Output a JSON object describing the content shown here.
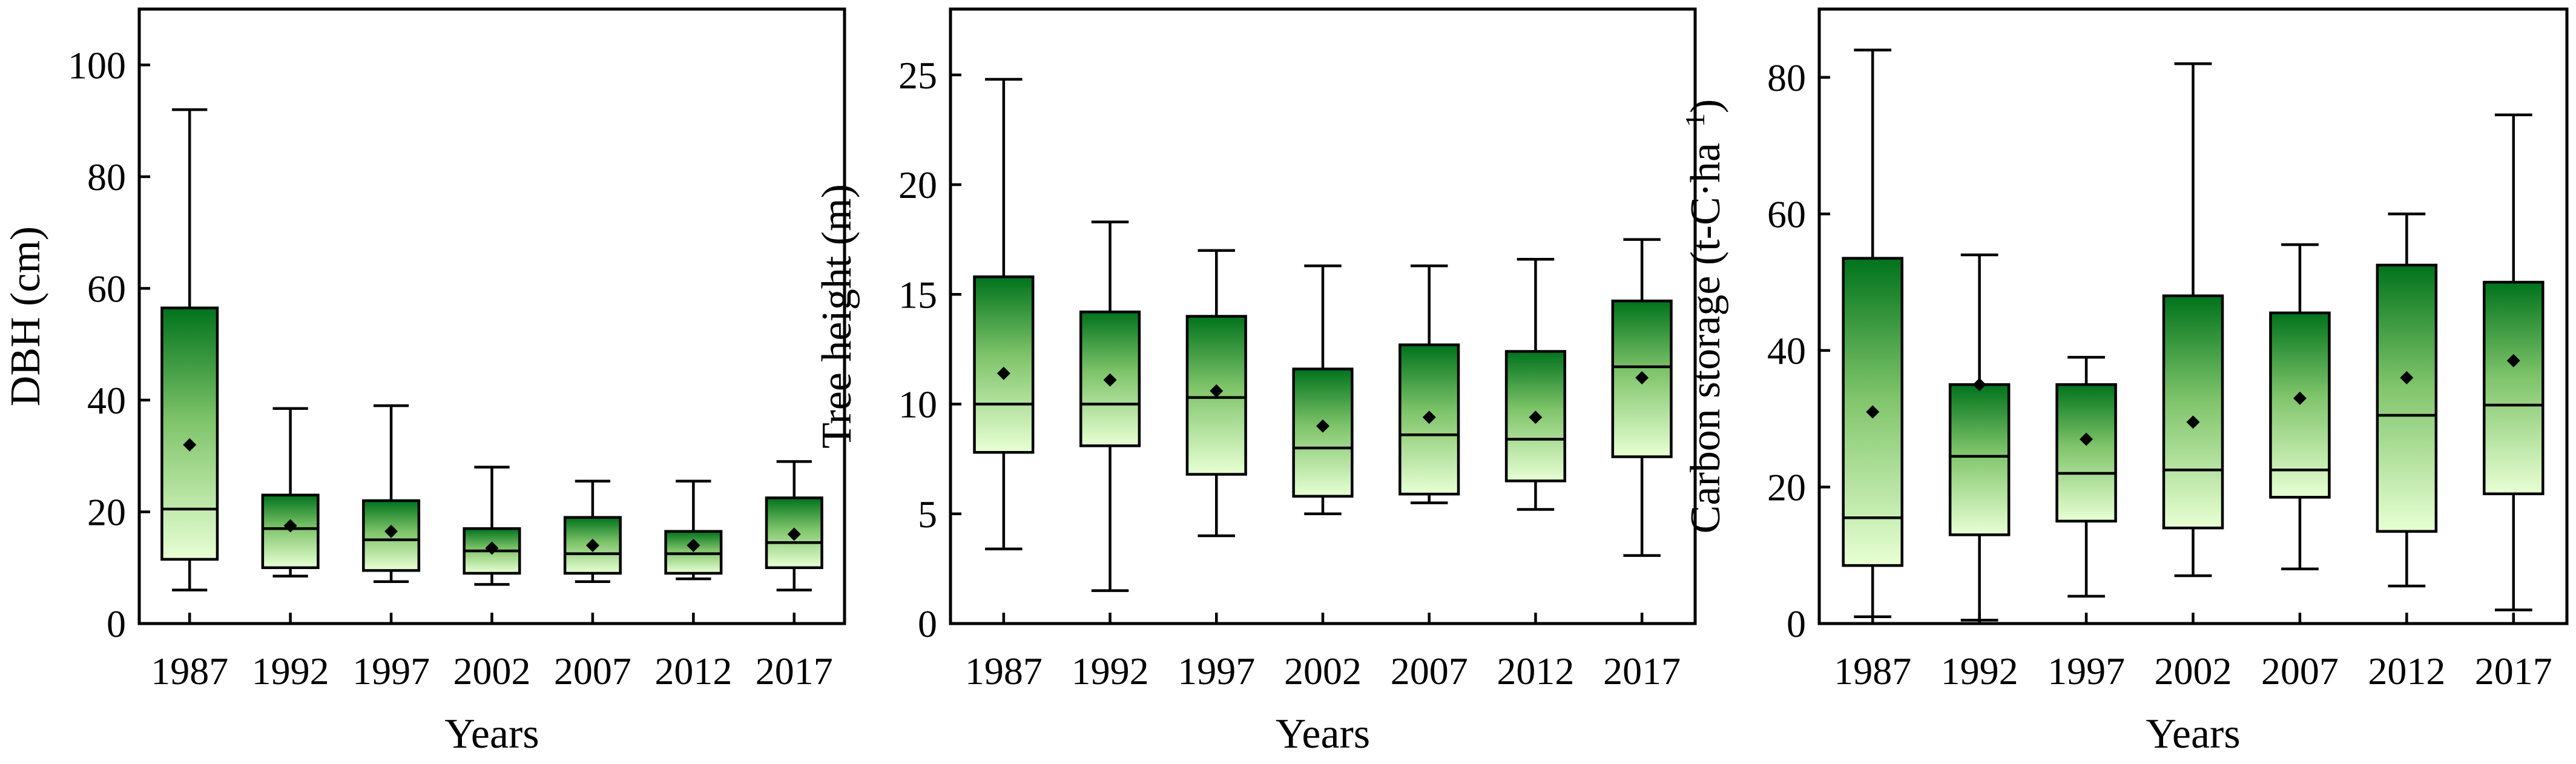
{
  "colors": {
    "box_top": "#00731c",
    "box_mid": "#7fc46a",
    "box_bottom": "#e8ffd4",
    "mean_marker": "#000000"
  },
  "chart_data": [
    {
      "type": "box",
      "xlabel": "Years",
      "ylabel": "DBH (cm)",
      "ylim": [
        0,
        110
      ],
      "yticks": [
        0,
        20,
        40,
        60,
        80,
        100
      ],
      "categories": [
        "1987",
        "1992",
        "1997",
        "2002",
        "2007",
        "2012",
        "2017"
      ],
      "boxes": [
        {
          "min": 6,
          "q1": 11.5,
          "median": 20.5,
          "q3": 56.5,
          "max": 92,
          "mean": 32
        },
        {
          "min": 8.5,
          "q1": 10,
          "median": 17,
          "q3": 23,
          "max": 38.5,
          "mean": 17.5
        },
        {
          "min": 7.5,
          "q1": 9.5,
          "median": 15,
          "q3": 22,
          "max": 39,
          "mean": 16.5
        },
        {
          "min": 7,
          "q1": 9,
          "median": 13,
          "q3": 17,
          "max": 28,
          "mean": 13.5
        },
        {
          "min": 7.5,
          "q1": 9,
          "median": 12.5,
          "q3": 19,
          "max": 25.5,
          "mean": 14
        },
        {
          "min": 8,
          "q1": 9,
          "median": 12.5,
          "q3": 16.5,
          "max": 25.5,
          "mean": 14
        },
        {
          "min": 6,
          "q1": 10,
          "median": 14.5,
          "q3": 22.5,
          "max": 29,
          "mean": 16
        }
      ]
    },
    {
      "type": "box",
      "xlabel": "Years",
      "ylabel": "Tree height (m)",
      "ylim": [
        0,
        28
      ],
      "yticks": [
        0,
        5,
        10,
        15,
        20,
        25
      ],
      "categories": [
        "1987",
        "1992",
        "1997",
        "2002",
        "2007",
        "2012",
        "2017"
      ],
      "boxes": [
        {
          "min": 3.4,
          "q1": 7.8,
          "median": 10,
          "q3": 15.8,
          "max": 24.8,
          "mean": 11.4
        },
        {
          "min": 1.5,
          "q1": 8.1,
          "median": 10,
          "q3": 14.2,
          "max": 18.3,
          "mean": 11.1
        },
        {
          "min": 4,
          "q1": 6.8,
          "median": 10.3,
          "q3": 14,
          "max": 17,
          "mean": 10.6
        },
        {
          "min": 5,
          "q1": 5.8,
          "median": 8,
          "q3": 11.6,
          "max": 16.3,
          "mean": 9
        },
        {
          "min": 5.5,
          "q1": 5.9,
          "median": 8.6,
          "q3": 12.7,
          "max": 16.3,
          "mean": 9.4
        },
        {
          "min": 5.2,
          "q1": 6.5,
          "median": 8.4,
          "q3": 12.4,
          "max": 16.6,
          "mean": 9.4
        },
        {
          "min": 3.1,
          "q1": 7.6,
          "median": 11.7,
          "q3": 14.7,
          "max": 17.5,
          "mean": 11.2
        }
      ]
    },
    {
      "type": "box",
      "xlabel": "Years",
      "ylabel": "Carbon storage (t-C·ha",
      "ylabel_sup": "−1",
      "ylabel_close": ")",
      "ylim": [
        0,
        90
      ],
      "yticks": [
        0,
        20,
        40,
        60,
        80
      ],
      "categories": [
        "1987",
        "1992",
        "1997",
        "2002",
        "2007",
        "2012",
        "2017"
      ],
      "boxes": [
        {
          "min": 1,
          "q1": 8.5,
          "median": 15.5,
          "q3": 53.5,
          "max": 84,
          "mean": 31
        },
        {
          "min": 0.5,
          "q1": 13,
          "median": 24.5,
          "q3": 35,
          "max": 54,
          "mean": 35
        },
        {
          "min": 4,
          "q1": 15,
          "median": 22,
          "q3": 35,
          "max": 39,
          "mean": 27
        },
        {
          "min": 7,
          "q1": 14,
          "median": 22.5,
          "q3": 48,
          "max": 82,
          "mean": 29.5
        },
        {
          "min": 8,
          "q1": 18.5,
          "median": 22.5,
          "q3": 45.5,
          "max": 55.5,
          "mean": 33
        },
        {
          "min": 5.5,
          "q1": 13.5,
          "median": 30.5,
          "q3": 52.5,
          "max": 60,
          "mean": 36
        },
        {
          "min": 2,
          "q1": 19,
          "median": 32,
          "q3": 50,
          "max": 74.5,
          "mean": 38.5
        }
      ]
    }
  ]
}
